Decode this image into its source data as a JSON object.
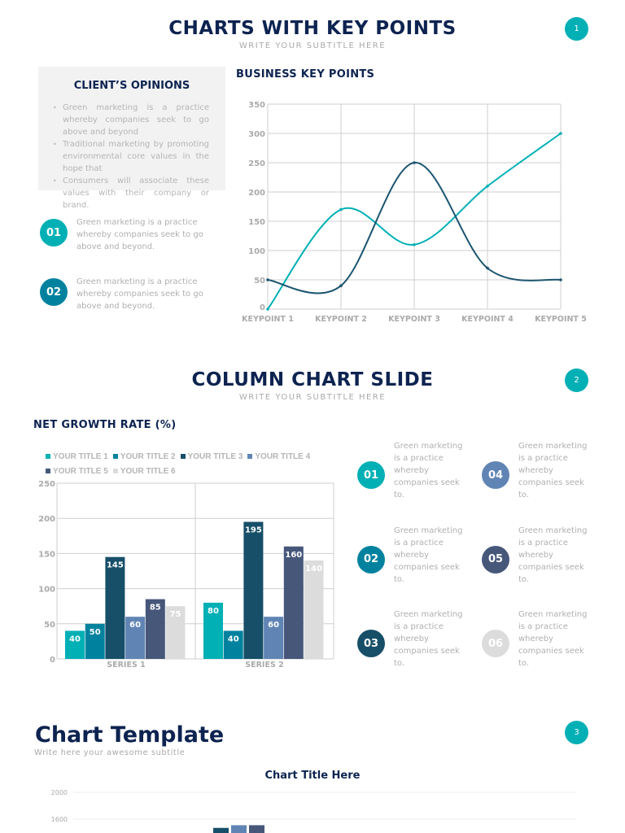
{
  "slide1": {
    "title": "CHARTS WITH KEY POINTS",
    "subtitle": "WRITE YOUR SUBTITLE HERE",
    "page": "1",
    "opinions": {
      "title": "CLIENT’S OPINIONS",
      "bullets": [
        "Green marketing is a practice whereby companies seek to go above and beyond",
        "Traditional marketing by promoting environmental core values in the hope that",
        "Consumers will associate these values with their company or brand."
      ]
    },
    "points": [
      {
        "num": "01",
        "text": "Green marketing is a practice whereby companies seek to go above and beyond.",
        "color": "#00b0b5"
      },
      {
        "num": "02",
        "text": "Green marketing is a practice whereby companies seek to go above and beyond.",
        "color": "#00829f"
      }
    ],
    "chart_heading": "BUSINESS KEY POINTS"
  },
  "slide2": {
    "title": "COLUMN CHART SLIDE",
    "subtitle": "WRITE YOUR SUBTITLE HERE",
    "page": "2",
    "chart_heading": "NET GROWTH RATE (%)",
    "points": [
      {
        "num": "01",
        "text": "Green marketing is a practice whereby companies seek to.",
        "color": "#00b0b5"
      },
      {
        "num": "02",
        "text": "Green marketing is a practice whereby companies seek to.",
        "color": "#00829f"
      },
      {
        "num": "03",
        "text": "Green marketing is a practice whereby companies seek to.",
        "color": "#174f68"
      },
      {
        "num": "04",
        "text": "Green marketing is a practice whereby companies seek to.",
        "color": "#6085b5"
      },
      {
        "num": "05",
        "text": "Green marketing is a practice whereby companies seek to.",
        "color": "#46577a"
      },
      {
        "num": "06",
        "text": "Green marketing is a practice whereby companies seek to.",
        "color": "#dcdcdc"
      }
    ]
  },
  "slide3": {
    "title": "Chart Template",
    "subtitle": "Write here your awesome subtitle",
    "page": "3"
  },
  "chart_data": [
    {
      "type": "line",
      "categories": [
        "KEYPOINT 1",
        "KEYPOINT 2",
        "KEYPOINT 3",
        "KEYPOINT 4",
        "KEYPOINT 5"
      ],
      "series": [
        {
          "values": [
            0,
            170,
            110,
            210,
            300
          ],
          "color": "#00b0b5"
        },
        {
          "values": [
            50,
            40,
            250,
            70,
            50
          ],
          "color": "#1c5570"
        }
      ],
      "ylim": [
        0,
        350
      ],
      "yticks": [
        0,
        50,
        100,
        150,
        200,
        250,
        300,
        350
      ],
      "grid": true,
      "smooth": true
    },
    {
      "type": "bar",
      "categories": [
        "SERIES 1",
        "SERIES 2"
      ],
      "series": [
        {
          "name": "YOUR TITLE 1",
          "values": [
            40,
            80
          ],
          "color": "#00b0b5"
        },
        {
          "name": "YOUR TITLE 2",
          "values": [
            50,
            40
          ],
          "color": "#00829f"
        },
        {
          "name": "YOUR TITLE 3",
          "values": [
            145,
            195
          ],
          "color": "#174f68"
        },
        {
          "name": "YOUR TITLE 4",
          "values": [
            60,
            60
          ],
          "color": "#6085b5"
        },
        {
          "name": "YOUR TITLE 5",
          "values": [
            85,
            160
          ],
          "color": "#46577a"
        },
        {
          "name": "YOUR TITLE 6",
          "values": [
            75,
            140
          ],
          "color": "#dcdcdc"
        }
      ],
      "ylim": [
        0,
        250
      ],
      "yticks": [
        0,
        50,
        100,
        150,
        200,
        250
      ],
      "legend": "top",
      "grid": true,
      "data_labels": true
    },
    {
      "type": "bar",
      "title": "Chart Title Here",
      "series": [
        {
          "values": [
            1470
          ],
          "color": "#174f68"
        },
        {
          "values": [
            1510
          ],
          "color": "#6085b5"
        },
        {
          "values": [
            1510
          ],
          "color": "#46577a"
        }
      ],
      "yticks": [
        1600,
        2000
      ],
      "grid": true
    }
  ]
}
